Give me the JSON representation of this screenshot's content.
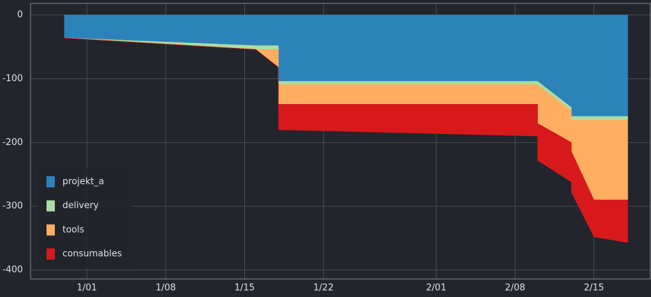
{
  "chart_data": {
    "type": "stacked_area",
    "x": [
      "12/30",
      "1/16",
      "1/18",
      "1/18",
      "2/10",
      "2/10",
      "2/13",
      "2/13",
      "2/15",
      "2/18"
    ],
    "series": [
      {
        "name": "projekt_a",
        "color": "#2b83ba",
        "values": [
          -36,
          -48,
          -48,
          -104,
          -104,
          -104,
          -145,
          -159,
          -159,
          -159
        ]
      },
      {
        "name": "delivery",
        "color": "#abdda4",
        "values": [
          0,
          -6,
          -6,
          -5,
          -5,
          -6,
          -5,
          -6,
          -6,
          -6
        ]
      },
      {
        "name": "tools",
        "color": "#fdae61",
        "values": [
          0,
          0,
          -28,
          -31,
          -31,
          -60,
          -50,
          -49,
          -125,
          -125
        ]
      },
      {
        "name": "consumables",
        "color": "#d7191c",
        "values": [
          0,
          0,
          0,
          -40,
          -50,
          -58,
          -62,
          -64,
          -58,
          -67
        ]
      }
    ],
    "xlim": [
      "12/27",
      "2/20"
    ],
    "xticks": [
      "1/01",
      "1/08",
      "1/15",
      "1/22",
      "2/01",
      "2/08",
      "2/15"
    ],
    "ylim": [
      -414,
      18
    ],
    "yticks": [
      0,
      -100,
      -200,
      -300,
      -400
    ],
    "grid": true,
    "legend": "lower left"
  }
}
